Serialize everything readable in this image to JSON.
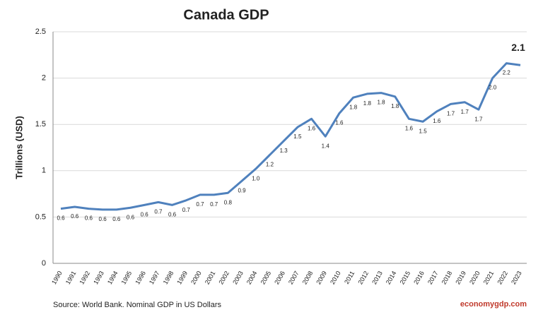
{
  "chart_data": {
    "type": "line",
    "title": "Canada GDP",
    "y_label": "Trillions (USD)",
    "source": "Source: World Bank.  Nominal GDP in US Dollars",
    "watermark": "economygdp.com",
    "categories": [
      "1990",
      "1991",
      "1992",
      "1993",
      "1994",
      "1995",
      "1996",
      "1997",
      "1998",
      "1999",
      "2000",
      "2001",
      "2002",
      "2003",
      "2004",
      "2005",
      "2006",
      "2007",
      "2008",
      "2009",
      "2010",
      "2011",
      "2012",
      "2013",
      "2014",
      "2015",
      "2016",
      "2017",
      "2018",
      "2019",
      "2020",
      "2021",
      "2022",
      "2023"
    ],
    "series": [
      {
        "name": "GDP",
        "color": "#4f81bd",
        "values": [
          0.59,
          0.61,
          0.59,
          0.58,
          0.58,
          0.6,
          0.63,
          0.66,
          0.63,
          0.68,
          0.74,
          0.74,
          0.76,
          0.89,
          1.02,
          1.17,
          1.32,
          1.47,
          1.56,
          1.37,
          1.62,
          1.79,
          1.83,
          1.84,
          1.8,
          1.56,
          1.53,
          1.64,
          1.72,
          1.74,
          1.66,
          2.0,
          2.16,
          2.14
        ],
        "value_labels": [
          "0.6",
          "0.6",
          "0.6",
          "0.6",
          "0.6",
          "0.6",
          "0.6",
          "0.7",
          "0.6",
          "0.7",
          "0.7",
          "0.7",
          "0.8",
          "0.9",
          "1.0",
          "1.2",
          "1.3",
          "1.5",
          "1.6",
          "1.4",
          "1.6",
          "1.8",
          "1.8",
          "1.8",
          "1.8",
          "1.6",
          "1.5",
          "1.6",
          "1.7",
          "1.7",
          "1.7",
          "2.0",
          "2.2",
          "2.1"
        ]
      }
    ],
    "ylim": [
      0,
      2.5
    ],
    "yticks": [
      0,
      0.5,
      1,
      1.5,
      2,
      2.5
    ],
    "grid": true
  }
}
